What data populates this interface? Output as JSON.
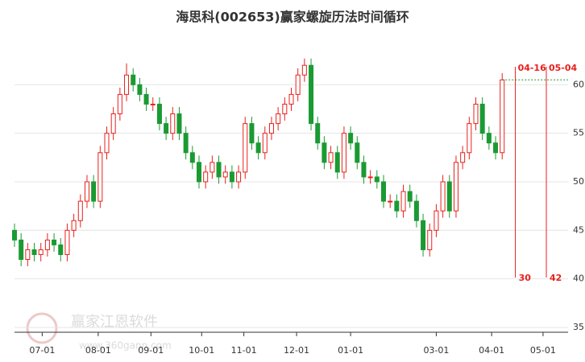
{
  "chart_data": {
    "type": "candlestick",
    "title": "海思科(002653)赢家螺旋历法时间循环",
    "watermark": {
      "name": "赢家江恩软件",
      "url": "www.360gann.com"
    },
    "up_color": "#e8201c",
    "down_color": "#1a9a33",
    "open": [
      45,
      44,
      42,
      43,
      42.5,
      43,
      44,
      43.5,
      42.5,
      45,
      46,
      48,
      50,
      48,
      53,
      55,
      57,
      59,
      61,
      60,
      59,
      58,
      58,
      56,
      55,
      57,
      55,
      53,
      52,
      50,
      51,
      52,
      50.5,
      51,
      50,
      51,
      56,
      54,
      53,
      55,
      56,
      57,
      58,
      59,
      61,
      62,
      56,
      54,
      52,
      53,
      51,
      55,
      54,
      52,
      50.5,
      50.5,
      50,
      48,
      48,
      47,
      49,
      48,
      46,
      43,
      45,
      47,
      50,
      47,
      52,
      53,
      56,
      58,
      55,
      54,
      53
    ],
    "high": [
      45.7,
      44.7,
      43.7,
      43.7,
      43.7,
      44.7,
      44.7,
      44.2,
      45.7,
      46.7,
      48.7,
      50.7,
      50.7,
      53.7,
      55.7,
      57.7,
      59.7,
      62.2,
      61.7,
      60.7,
      59.7,
      58.7,
      58.7,
      56.7,
      57.7,
      57.7,
      55.7,
      53.7,
      52.7,
      51.7,
      52.7,
      52.7,
      51.7,
      51.7,
      51.7,
      56.7,
      56.7,
      54.7,
      55.7,
      56.7,
      57.7,
      58.7,
      59.7,
      61.7,
      62.7,
      62.7,
      56.7,
      54.7,
      53.7,
      53.7,
      55.7,
      55.7,
      54.7,
      52.7,
      51.2,
      51.2,
      50.7,
      48.7,
      48.7,
      49.7,
      49.7,
      48.7,
      46.7,
      45.7,
      47.7,
      50.7,
      50.7,
      52.7,
      53.7,
      56.7,
      58.7,
      58.7,
      55.7,
      54.7,
      61.2
    ],
    "low": [
      43.3,
      41.3,
      41.3,
      41.8,
      41.8,
      42.3,
      42.8,
      41.8,
      41.8,
      44.3,
      45.3,
      47.3,
      47.3,
      47.3,
      52.3,
      54.3,
      56.3,
      58.3,
      59.3,
      58.3,
      57.3,
      57.3,
      55.3,
      54.3,
      54.3,
      54.3,
      52.3,
      51.3,
      49.3,
      49.3,
      50.3,
      49.8,
      49.8,
      49.3,
      49.3,
      50.3,
      53.3,
      52.3,
      52.3,
      54.3,
      55.3,
      56.3,
      57.3,
      58.3,
      60.3,
      55.3,
      53.3,
      51.3,
      51.3,
      50.3,
      50.3,
      53.3,
      51.3,
      49.8,
      49.8,
      49.3,
      47.3,
      47.3,
      46.3,
      46.3,
      47.3,
      45.3,
      42.3,
      42.3,
      44.3,
      46.3,
      46.3,
      46.3,
      51.3,
      52.3,
      55.3,
      54.3,
      53.3,
      52.3,
      52.3
    ],
    "close": [
      44,
      42,
      43,
      42.5,
      43,
      44,
      43.5,
      42.5,
      45,
      46,
      48,
      50,
      48,
      53,
      55,
      57,
      59,
      61,
      60,
      59,
      58,
      58,
      56,
      55,
      57,
      55,
      53,
      52,
      50,
      51,
      52,
      50.5,
      51,
      50,
      51,
      56,
      54,
      53,
      55,
      56,
      57,
      58,
      59,
      61,
      62,
      56,
      54,
      52,
      53,
      51,
      55,
      54,
      52,
      50.5,
      50.5,
      50,
      48,
      48,
      47,
      49,
      48,
      46,
      43,
      45,
      47,
      50,
      47,
      52,
      53,
      56,
      58,
      55,
      54,
      53,
      60.5
    ],
    "xlim": [
      0,
      84
    ],
    "xticks": [
      {
        "value": 4.2,
        "label": "07-01"
      },
      {
        "value": 12.7,
        "label": "08-01"
      },
      {
        "value": 20.7,
        "label": "09-01"
      },
      {
        "value": 28.4,
        "label": "10-01"
      },
      {
        "value": 34.8,
        "label": "11-01"
      },
      {
        "value": 42.8,
        "label": "12-01"
      },
      {
        "value": 51,
        "label": "01-01"
      },
      {
        "value": 64,
        "label": "03-01"
      },
      {
        "value": 72.4,
        "label": "04-01"
      },
      {
        "value": 80.2,
        "label": "05-01"
      }
    ],
    "ylim": [
      34.5,
      65
    ],
    "yticks": [
      35,
      40,
      45,
      50,
      55,
      60
    ],
    "grid": true,
    "time_markers": [
      {
        "x": 76,
        "label": "04-16",
        "count": 30,
        "color": "#e8201c"
      },
      {
        "x": 80.7,
        "label": "05-04",
        "count": 42,
        "color": "#e8201c"
      }
    ]
  }
}
